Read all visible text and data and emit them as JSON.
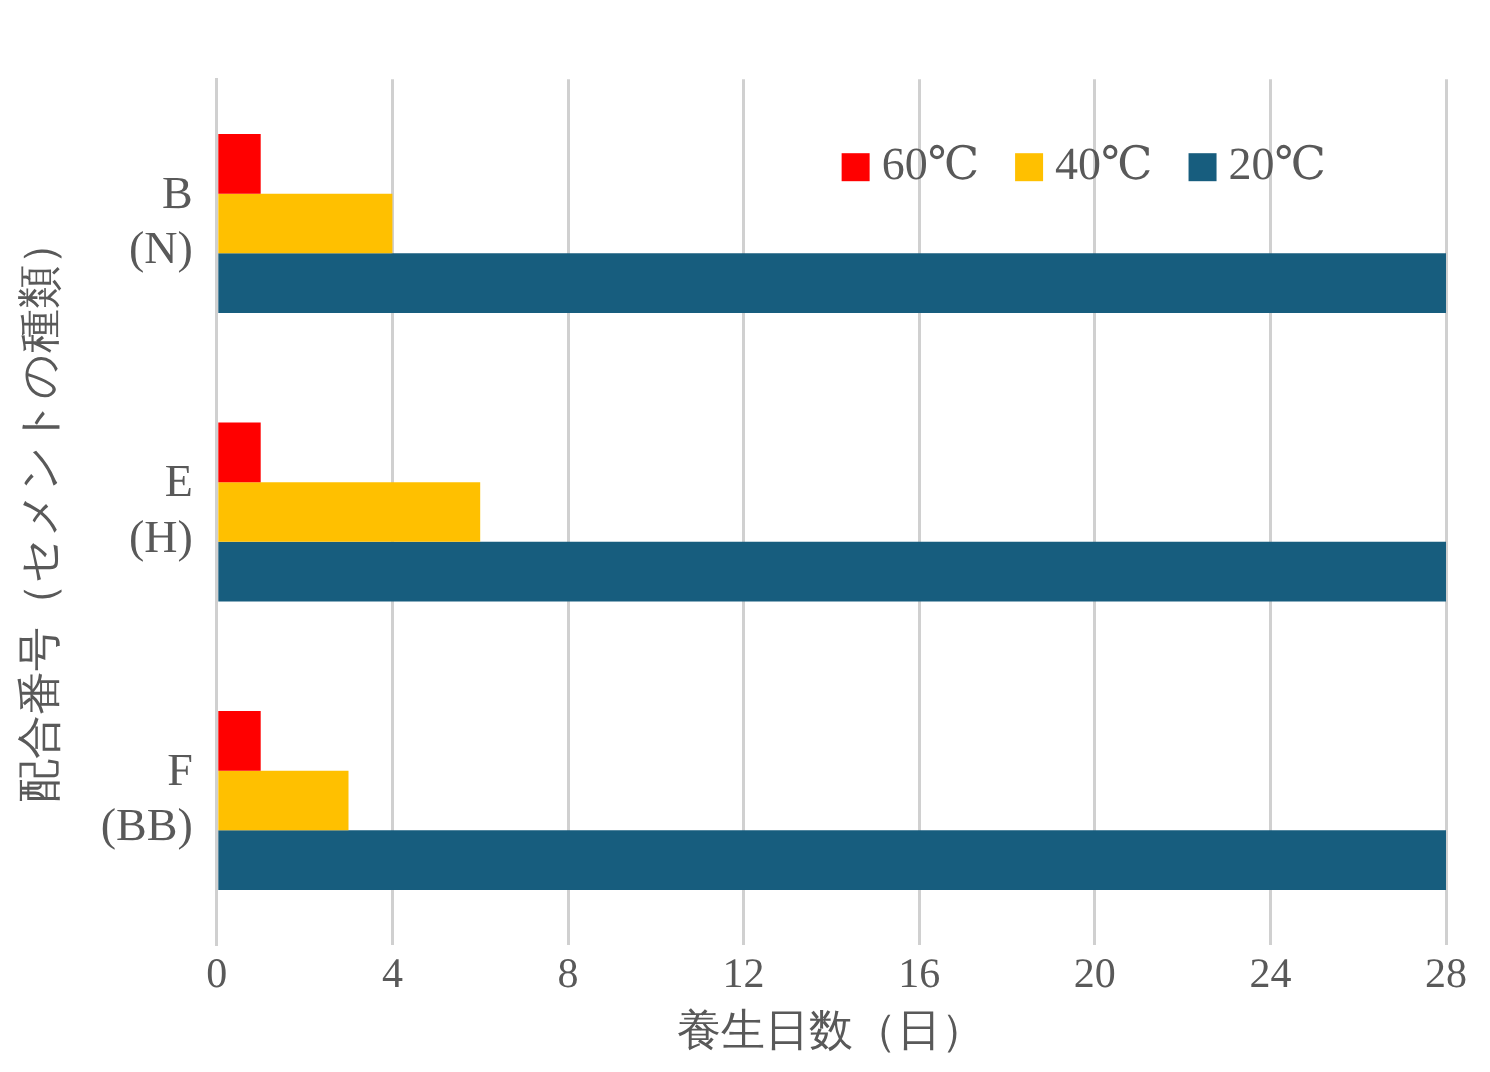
{
  "chart_data": {
    "type": "bar",
    "orientation": "horizontal",
    "categories": [
      "B\n(N)",
      "E\n(H)",
      "F\n(BB)"
    ],
    "series": [
      {
        "name": "60℃",
        "color": "#ff0000",
        "values": [
          1,
          1,
          1
        ]
      },
      {
        "name": "40℃",
        "color": "#ffc000",
        "values": [
          4,
          6,
          3
        ]
      },
      {
        "name": "20℃",
        "color": "#175d7e",
        "values": [
          28,
          28,
          28
        ]
      }
    ],
    "xlim": [
      0,
      28
    ],
    "xticks": [
      0,
      4,
      8,
      12,
      16,
      20,
      24,
      28
    ],
    "xlabel": "養生日数（日）",
    "ylabel": "配合番号（セメントの種類）",
    "grid": "x",
    "legend": "top right"
  }
}
